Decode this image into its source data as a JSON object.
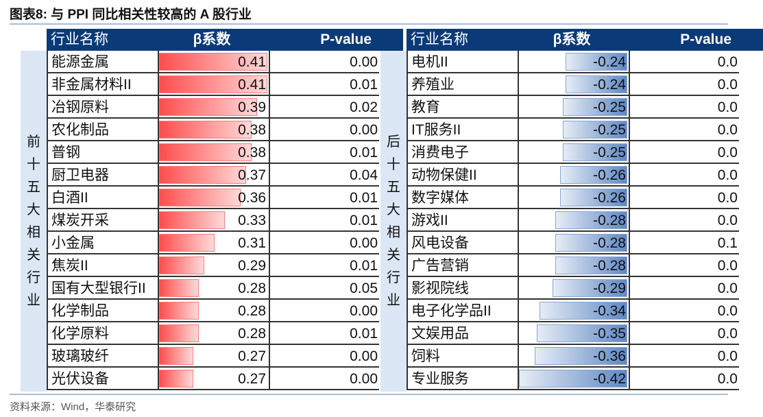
{
  "title": "图表8:  与 PPI 同比相关性较高的 A 股行业",
  "source": "资料来源：Wind，华泰研究",
  "colors": {
    "header": "#0b3a78",
    "positive_bar": "#ff4d4d",
    "negative_bar": "#5f88c4",
    "side": "#dbe7f4"
  },
  "chart_data": {
    "type": "table",
    "columns": [
      "行业名称",
      "β系数",
      "P-value"
    ],
    "tables": [
      {
        "group": "前十五大相关行业",
        "rows": [
          {
            "name": "能源金属",
            "beta": "0.41",
            "p": "0.00"
          },
          {
            "name": "非金属材料II",
            "beta": "0.41",
            "p": "0.01"
          },
          {
            "name": "冶钢原料",
            "beta": "0.39",
            "p": "0.02"
          },
          {
            "name": "农化制品",
            "beta": "0.38",
            "p": "0.00"
          },
          {
            "name": "普钢",
            "beta": "0.38",
            "p": "0.01"
          },
          {
            "name": "厨卫电器",
            "beta": "0.37",
            "p": "0.04"
          },
          {
            "name": "白酒II",
            "beta": "0.36",
            "p": "0.01"
          },
          {
            "name": "煤炭开采",
            "beta": "0.33",
            "p": "0.01"
          },
          {
            "name": "小金属",
            "beta": "0.31",
            "p": "0.00"
          },
          {
            "name": "焦炭II",
            "beta": "0.29",
            "p": "0.01"
          },
          {
            "name": "国有大型银行II",
            "beta": "0.28",
            "p": "0.05"
          },
          {
            "name": "化学制品",
            "beta": "0.28",
            "p": "0.00"
          },
          {
            "name": "化学原料",
            "beta": "0.28",
            "p": "0.01"
          },
          {
            "name": "玻璃玻纤",
            "beta": "0.27",
            "p": "0.00"
          },
          {
            "name": "光伏设备",
            "beta": "0.27",
            "p": "0.00"
          }
        ]
      },
      {
        "group": "后十五大相关行业",
        "rows": [
          {
            "name": "电机II",
            "beta": "-0.24",
            "p": "0.0"
          },
          {
            "name": "养殖业",
            "beta": "-0.24",
            "p": "0.0"
          },
          {
            "name": "教育",
            "beta": "-0.25",
            "p": "0.0"
          },
          {
            "name": "IT服务II",
            "beta": "-0.25",
            "p": "0.0"
          },
          {
            "name": "消费电子",
            "beta": "-0.25",
            "p": "0.0"
          },
          {
            "name": "动物保健II",
            "beta": "-0.26",
            "p": "0.0"
          },
          {
            "name": "数字媒体",
            "beta": "-0.26",
            "p": "0.0"
          },
          {
            "name": "游戏II",
            "beta": "-0.28",
            "p": "0.0"
          },
          {
            "name": "风电设备",
            "beta": "-0.28",
            "p": "0.1"
          },
          {
            "name": "广告营销",
            "beta": "-0.28",
            "p": "0.0"
          },
          {
            "name": "影视院线",
            "beta": "-0.29",
            "p": "0.0"
          },
          {
            "name": "电子化学品II",
            "beta": "-0.34",
            "p": "0.0"
          },
          {
            "name": "文娱用品",
            "beta": "-0.35",
            "p": "0.0"
          },
          {
            "name": "饲料",
            "beta": "-0.36",
            "p": "0.0"
          },
          {
            "name": "专业服务",
            "beta": "-0.42",
            "p": "0.0"
          }
        ]
      }
    ]
  }
}
